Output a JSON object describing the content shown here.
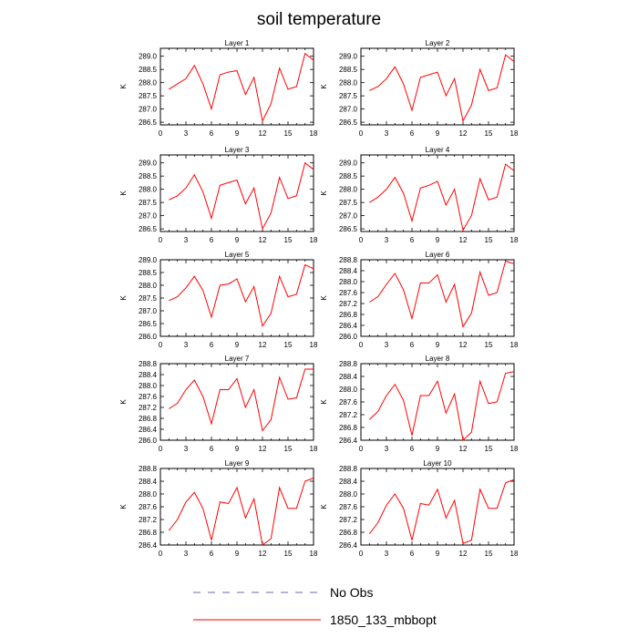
{
  "title": "soil temperature",
  "legend": [
    {
      "label": "No Obs",
      "color": "#6a6aa8",
      "style": "dashed"
    },
    {
      "label": "1850_133_mbbopt",
      "color": "#ff0000",
      "style": "solid"
    }
  ],
  "chart_data": [
    {
      "type": "line",
      "title": "Layer 1",
      "ylabel": "K",
      "xlim": [
        0,
        18
      ],
      "ylim": [
        286.4,
        289.3
      ],
      "xticks": [
        0,
        3,
        6,
        9,
        12,
        15,
        18
      ],
      "yticks": [
        286.5,
        287.0,
        287.5,
        288.0,
        288.5,
        289.0
      ],
      "ytick_labels": [
        "286.5",
        "287.0",
        "287.5",
        "288.0",
        "288.5",
        "289.0"
      ],
      "series": [
        {
          "color": "#ff0000",
          "x": [
            1,
            2,
            3,
            4,
            5,
            6,
            7,
            8,
            9,
            10,
            11,
            12,
            13,
            14,
            15,
            16,
            17,
            18
          ],
          "y": [
            287.75,
            287.95,
            288.15,
            288.65,
            287.95,
            287.0,
            288.3,
            288.4,
            288.45,
            287.55,
            288.2,
            286.55,
            287.2,
            288.55,
            287.75,
            287.85,
            289.1,
            288.85
          ]
        }
      ]
    },
    {
      "type": "line",
      "title": "Layer 2",
      "ylabel": "K",
      "xlim": [
        0,
        18
      ],
      "ylim": [
        286.4,
        289.3
      ],
      "xticks": [
        0,
        3,
        6,
        9,
        12,
        15,
        18
      ],
      "yticks": [
        286.5,
        287.0,
        287.5,
        288.0,
        288.5,
        289.0
      ],
      "ytick_labels": [
        "286.5",
        "287.0",
        "287.5",
        "288.0",
        "288.5",
        "289.0"
      ],
      "series": [
        {
          "color": "#ff0000",
          "x": [
            1,
            2,
            3,
            4,
            5,
            6,
            7,
            8,
            9,
            10,
            11,
            12,
            13,
            14,
            15,
            16,
            17,
            18
          ],
          "y": [
            287.7,
            287.85,
            288.15,
            288.6,
            287.95,
            286.95,
            288.2,
            288.3,
            288.4,
            287.5,
            288.15,
            286.55,
            287.15,
            288.5,
            287.7,
            287.8,
            289.05,
            288.8
          ]
        }
      ]
    },
    {
      "type": "line",
      "title": "Layer 3",
      "ylabel": "K",
      "xlim": [
        0,
        18
      ],
      "ylim": [
        286.4,
        289.3
      ],
      "xticks": [
        0,
        3,
        6,
        9,
        12,
        15,
        18
      ],
      "yticks": [
        286.5,
        287.0,
        287.5,
        288.0,
        288.5,
        289.0
      ],
      "ytick_labels": [
        "286.5",
        "287.0",
        "287.5",
        "288.0",
        "288.5",
        "289.0"
      ],
      "series": [
        {
          "color": "#ff0000",
          "x": [
            1,
            2,
            3,
            4,
            5,
            6,
            7,
            8,
            9,
            10,
            11,
            12,
            13,
            14,
            15,
            16,
            17,
            18
          ],
          "y": [
            287.6,
            287.75,
            288.05,
            288.55,
            287.9,
            286.9,
            288.15,
            288.25,
            288.35,
            287.45,
            288.05,
            286.5,
            287.1,
            288.45,
            287.65,
            287.75,
            289.0,
            288.75
          ]
        }
      ]
    },
    {
      "type": "line",
      "title": "Layer 4",
      "ylabel": "K",
      "xlim": [
        0,
        18
      ],
      "ylim": [
        286.4,
        289.3
      ],
      "xticks": [
        0,
        3,
        6,
        9,
        12,
        15,
        18
      ],
      "yticks": [
        286.5,
        287.0,
        287.5,
        288.0,
        288.5,
        289.0
      ],
      "ytick_labels": [
        "286.5",
        "287.0",
        "287.5",
        "288.0",
        "288.5",
        "289.0"
      ],
      "series": [
        {
          "color": "#ff0000",
          "x": [
            1,
            2,
            3,
            4,
            5,
            6,
            7,
            8,
            9,
            10,
            11,
            12,
            13,
            14,
            15,
            16,
            17,
            18
          ],
          "y": [
            287.5,
            287.7,
            288.0,
            288.45,
            287.85,
            286.8,
            288.05,
            288.15,
            288.3,
            287.4,
            288.0,
            286.45,
            287.0,
            288.4,
            287.6,
            287.7,
            288.95,
            288.7
          ]
        }
      ]
    },
    {
      "type": "line",
      "title": "Layer 5",
      "ylabel": "K",
      "xlim": [
        0,
        18
      ],
      "ylim": [
        286.0,
        289.0
      ],
      "xticks": [
        0,
        3,
        6,
        9,
        12,
        15,
        18
      ],
      "yticks": [
        286.0,
        286.5,
        287.0,
        287.5,
        288.0,
        288.5,
        289.0
      ],
      "ytick_labels": [
        "286.0",
        "286.5",
        "287.0",
        "287.5",
        "288.0",
        "288.5",
        "289.0"
      ],
      "series": [
        {
          "color": "#ff0000",
          "x": [
            1,
            2,
            3,
            4,
            5,
            6,
            7,
            8,
            9,
            10,
            11,
            12,
            13,
            14,
            15,
            16,
            17,
            18
          ],
          "y": [
            287.4,
            287.55,
            287.9,
            288.35,
            287.8,
            286.75,
            288.0,
            288.05,
            288.25,
            287.35,
            287.95,
            286.4,
            286.9,
            288.35,
            287.55,
            287.65,
            288.8,
            288.65
          ]
        }
      ]
    },
    {
      "type": "line",
      "title": "Layer 6",
      "ylabel": "K",
      "xlim": [
        0,
        18
      ],
      "ylim": [
        286.0,
        288.8
      ],
      "xticks": [
        0,
        3,
        6,
        9,
        12,
        15,
        18
      ],
      "yticks": [
        286.0,
        286.4,
        286.8,
        287.2,
        287.6,
        288.0,
        288.4,
        288.8
      ],
      "ytick_labels": [
        "286.0",
        "286.4",
        "286.8",
        "287.2",
        "287.6",
        "288.0",
        "288.4",
        "288.8"
      ],
      "series": [
        {
          "color": "#ff0000",
          "x": [
            1,
            2,
            3,
            4,
            5,
            6,
            7,
            8,
            9,
            10,
            11,
            12,
            13,
            14,
            15,
            16,
            17,
            18
          ],
          "y": [
            287.25,
            287.45,
            287.9,
            288.3,
            287.7,
            286.65,
            287.95,
            287.95,
            288.25,
            287.25,
            287.9,
            286.35,
            286.85,
            288.35,
            287.5,
            287.6,
            288.75,
            288.65
          ]
        }
      ]
    },
    {
      "type": "line",
      "title": "Layer 7",
      "ylabel": "K",
      "xlim": [
        0,
        18
      ],
      "ylim": [
        286.0,
        288.8
      ],
      "xticks": [
        0,
        3,
        6,
        9,
        12,
        15,
        18
      ],
      "yticks": [
        286.0,
        286.4,
        286.8,
        287.2,
        287.6,
        288.0,
        288.4,
        288.8
      ],
      "ytick_labels": [
        "286.0",
        "286.4",
        "286.8",
        "287.2",
        "287.6",
        "288.0",
        "288.4",
        "288.8"
      ],
      "series": [
        {
          "color": "#ff0000",
          "x": [
            1,
            2,
            3,
            4,
            5,
            6,
            7,
            8,
            9,
            10,
            11,
            12,
            13,
            14,
            15,
            16,
            17,
            18
          ],
          "y": [
            287.15,
            287.35,
            287.85,
            288.2,
            287.6,
            286.6,
            287.85,
            287.85,
            288.25,
            287.2,
            287.85,
            286.35,
            286.75,
            288.3,
            287.5,
            287.55,
            288.6,
            288.6
          ]
        }
      ]
    },
    {
      "type": "line",
      "title": "Layer 8",
      "ylabel": "K",
      "xlim": [
        0,
        18
      ],
      "ylim": [
        286.4,
        288.8
      ],
      "xticks": [
        0,
        3,
        6,
        9,
        12,
        15,
        18
      ],
      "yticks": [
        286.4,
        286.8,
        287.2,
        287.6,
        288.0,
        288.4,
        288.8
      ],
      "ytick_labels": [
        "286.4",
        "286.8",
        "287.2",
        "287.6",
        "288.0",
        "288.4",
        "288.8"
      ],
      "series": [
        {
          "color": "#ff0000",
          "x": [
            1,
            2,
            3,
            4,
            5,
            6,
            7,
            8,
            9,
            10,
            11,
            12,
            13,
            14,
            15,
            16,
            17,
            18
          ],
          "y": [
            287.05,
            287.3,
            287.8,
            288.15,
            287.65,
            286.55,
            287.8,
            287.8,
            288.25,
            287.25,
            287.85,
            286.4,
            286.65,
            288.25,
            287.55,
            287.6,
            288.5,
            288.55
          ]
        }
      ]
    },
    {
      "type": "line",
      "title": "Layer 9",
      "ylabel": "K",
      "xlim": [
        0,
        18
      ],
      "ylim": [
        286.4,
        288.8
      ],
      "xticks": [
        0,
        3,
        6,
        9,
        12,
        15,
        18
      ],
      "yticks": [
        286.4,
        286.8,
        287.2,
        287.6,
        288.0,
        288.4,
        288.8
      ],
      "ytick_labels": [
        "286.4",
        "286.8",
        "287.2",
        "287.6",
        "288.0",
        "288.4",
        "288.8"
      ],
      "series": [
        {
          "color": "#ff0000",
          "x": [
            1,
            2,
            3,
            4,
            5,
            6,
            7,
            8,
            9,
            10,
            11,
            12,
            13,
            14,
            15,
            16,
            17,
            18
          ],
          "y": [
            286.85,
            287.2,
            287.75,
            288.05,
            287.55,
            286.55,
            287.75,
            287.7,
            288.2,
            287.25,
            287.85,
            286.4,
            286.6,
            288.2,
            287.55,
            287.55,
            288.4,
            288.5
          ]
        }
      ]
    },
    {
      "type": "line",
      "title": "Layer 10",
      "ylabel": "K",
      "xlim": [
        0,
        18
      ],
      "ylim": [
        286.4,
        288.8
      ],
      "xticks": [
        0,
        3,
        6,
        9,
        12,
        15,
        18
      ],
      "yticks": [
        286.4,
        286.8,
        287.2,
        287.6,
        288.0,
        288.4,
        288.8
      ],
      "ytick_labels": [
        "286.4",
        "286.8",
        "287.2",
        "287.6",
        "288.0",
        "288.4",
        "288.8"
      ],
      "series": [
        {
          "color": "#ff0000",
          "x": [
            1,
            2,
            3,
            4,
            5,
            6,
            7,
            8,
            9,
            10,
            11,
            12,
            13,
            14,
            15,
            16,
            17,
            18
          ],
          "y": [
            286.75,
            287.1,
            287.65,
            288.0,
            287.55,
            286.55,
            287.7,
            287.65,
            288.15,
            287.25,
            287.8,
            286.45,
            286.55,
            288.15,
            287.55,
            287.55,
            288.35,
            288.45
          ]
        }
      ]
    }
  ]
}
